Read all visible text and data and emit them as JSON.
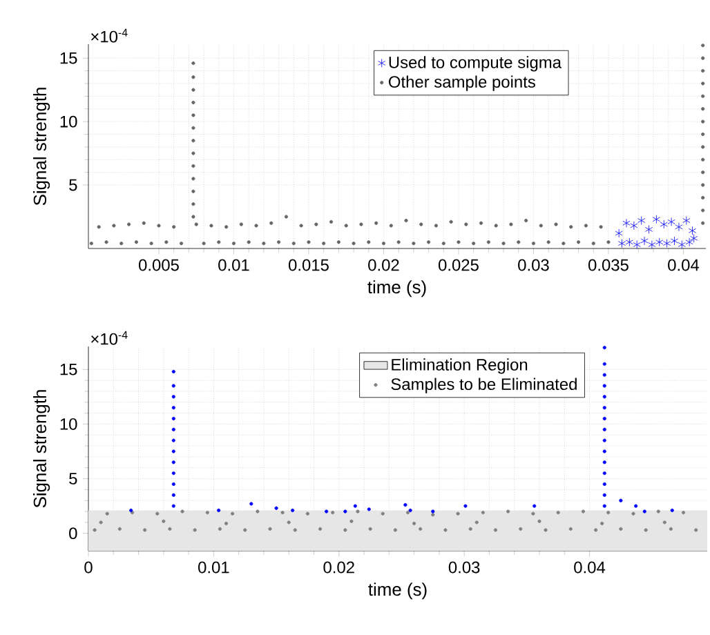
{
  "chart_data": [
    {
      "type": "scatter",
      "xlabel": "time (s)",
      "ylabel": "Signal strength",
      "annotations": [
        "×10$^{-4}$"
      ],
      "xlim": [
        0.0003,
        0.0415
      ],
      "ylim": [
        0,
        16.1
      ],
      "xticks": [
        0.005,
        0.01,
        0.015,
        0.02,
        0.025,
        0.03,
        0.035,
        0.04
      ],
      "yticks": [
        5,
        10,
        15
      ],
      "grid": true,
      "legend": "top",
      "series": [
        {
          "name": "Used to compute sigma",
          "color": "#0000ff",
          "marker": "cross",
          "x": [
            0.0357,
            0.0359,
            0.0362,
            0.0364,
            0.0367,
            0.0369,
            0.0372,
            0.0374,
            0.0377,
            0.0379,
            0.0382,
            0.0384,
            0.0387,
            0.0389,
            0.0392,
            0.0394,
            0.0397,
            0.0399,
            0.0402,
            0.0404,
            0.0406,
            0.0407
          ],
          "values": [
            1.2,
            0.4,
            2.0,
            0.5,
            1.8,
            0.3,
            2.2,
            0.6,
            1.5,
            0.3,
            2.3,
            0.5,
            1.9,
            0.4,
            2.1,
            0.6,
            1.7,
            0.3,
            2.2,
            0.5,
            1.4,
            0.8
          ]
        },
        {
          "name": "Other sample points",
          "color": "#666666",
          "marker": "circle",
          "x": [
            0.0005,
            0.001,
            0.0015,
            0.002,
            0.0025,
            0.003,
            0.0035,
            0.004,
            0.0045,
            0.005,
            0.0055,
            0.006,
            0.0065,
            0.0075,
            0.008,
            0.0085,
            0.009,
            0.0095,
            0.01,
            0.0105,
            0.011,
            0.0115,
            0.012,
            0.0125,
            0.013,
            0.0135,
            0.014,
            0.0145,
            0.015,
            0.0155,
            0.016,
            0.0165,
            0.017,
            0.0175,
            0.018,
            0.0185,
            0.019,
            0.0195,
            0.02,
            0.0205,
            0.021,
            0.0215,
            0.022,
            0.0225,
            0.023,
            0.0235,
            0.024,
            0.0245,
            0.025,
            0.0255,
            0.026,
            0.0265,
            0.027,
            0.0275,
            0.028,
            0.0285,
            0.029,
            0.0295,
            0.03,
            0.0305,
            0.031,
            0.0315,
            0.032,
            0.0325,
            0.033,
            0.0335,
            0.034,
            0.0345,
            0.035,
            0.0073,
            0.0073,
            0.0073,
            0.0073,
            0.0073,
            0.0073,
            0.0073,
            0.0073,
            0.0073,
            0.0073,
            0.0073,
            0.0073,
            0.0073,
            0.0413,
            0.0413,
            0.0413,
            0.0413,
            0.0413,
            0.0413,
            0.0413,
            0.0413,
            0.0413,
            0.0413,
            0.0413,
            0.0413,
            0.0413,
            0.0413,
            0.0413
          ],
          "values": [
            0.4,
            1.7,
            0.5,
            1.8,
            0.4,
            1.9,
            0.5,
            2.0,
            0.4,
            1.8,
            0.5,
            1.7,
            0.4,
            1.9,
            0.4,
            1.8,
            0.5,
            1.7,
            0.4,
            1.9,
            0.5,
            1.8,
            0.4,
            2.0,
            0.5,
            2.5,
            0.4,
            1.8,
            0.5,
            1.9,
            0.4,
            2.1,
            0.5,
            1.8,
            0.4,
            1.9,
            0.5,
            2.0,
            0.4,
            1.8,
            0.5,
            2.2,
            0.4,
            1.9,
            0.5,
            1.8,
            0.4,
            2.1,
            0.5,
            1.9,
            0.4,
            2.0,
            0.5,
            1.8,
            0.4,
            1.9,
            0.5,
            2.2,
            0.4,
            1.8,
            0.5,
            1.9,
            0.4,
            1.7,
            0.5,
            1.8,
            0.4,
            1.7,
            0.5,
            2.5,
            3.5,
            4.5,
            5.5,
            6.5,
            7.5,
            8.5,
            9.5,
            10.5,
            11.5,
            12.5,
            13.5,
            14.6,
            2,
            3,
            4,
            5,
            6,
            7,
            8,
            9,
            10,
            11,
            12,
            13,
            14,
            15,
            16
          ]
        }
      ]
    },
    {
      "type": "scatter",
      "xlabel": "time (s)",
      "ylabel": "Signal strength",
      "annotations": [
        "×10$^{-4}$"
      ],
      "xlim": [
        0,
        0.0494
      ],
      "ylim": [
        -1.6,
        17.1
      ],
      "xticks": [
        0,
        0.01,
        0.02,
        0.03,
        0.04
      ],
      "yticks": [
        0,
        5,
        10,
        15
      ],
      "grid": true,
      "legend": "top",
      "bands": [
        {
          "axis": "y",
          "from": -1.6,
          "to": 2.1,
          "label": "Elimination Region",
          "color": "#e6e6e6"
        }
      ],
      "series": [
        {
          "name": "Samples to be Eliminated",
          "color": "#808080",
          "marker": "circle",
          "x": [
            0.0005,
            0.0015,
            0.0025,
            0.0035,
            0.0045,
            0.0055,
            0.0065,
            0.0075,
            0.0085,
            0.0095,
            0.0105,
            0.0115,
            0.0125,
            0.0135,
            0.0145,
            0.0155,
            0.0165,
            0.0175,
            0.0185,
            0.0195,
            0.0205,
            0.0215,
            0.0225,
            0.0235,
            0.0245,
            0.0255,
            0.0265,
            0.0275,
            0.0285,
            0.0295,
            0.0305,
            0.0315,
            0.0325,
            0.0335,
            0.0345,
            0.0355,
            0.0365,
            0.0375,
            0.0385,
            0.0395,
            0.0405,
            0.0415,
            0.0425,
            0.0435,
            0.0445,
            0.0455,
            0.0465,
            0.0475,
            0.0485,
            0.001,
            0.006,
            0.011,
            0.016,
            0.021,
            0.026,
            0.031,
            0.036,
            0.041,
            0.046
          ],
          "values": [
            0.3,
            1.8,
            0.4,
            1.9,
            0.3,
            1.8,
            0.4,
            2.0,
            0.3,
            1.9,
            0.4,
            1.8,
            0.3,
            2.0,
            0.4,
            1.9,
            0.3,
            1.8,
            0.4,
            1.9,
            0.3,
            2.0,
            0.4,
            1.8,
            0.3,
            1.9,
            0.4,
            1.7,
            0.3,
            1.8,
            0.4,
            1.9,
            0.3,
            2.0,
            0.4,
            1.8,
            0.3,
            1.9,
            0.4,
            2.0,
            0.3,
            1.9,
            0.4,
            1.8,
            0.3,
            2.0,
            0.4,
            1.9,
            0.3,
            1.0,
            1.1,
            0.9,
            1.0,
            1.1,
            0.9,
            1.0,
            1.1,
            0.9,
            1.0
          ]
        },
        {
          "color": "#0000ff",
          "marker": "circle",
          "x": [
            0.0034,
            0.0104,
            0.013,
            0.015,
            0.0163,
            0.019,
            0.0205,
            0.0213,
            0.0224,
            0.0253,
            0.0257,
            0.0275,
            0.0301,
            0.0356,
            0.0425,
            0.0437,
            0.0444,
            0.0466,
            0.0068,
            0.0068,
            0.0068,
            0.0068,
            0.0068,
            0.0068,
            0.0068,
            0.0068,
            0.0068,
            0.0068,
            0.0068,
            0.0068,
            0.0068,
            0.0412,
            0.0412,
            0.0412,
            0.0412,
            0.0412,
            0.0412,
            0.0412,
            0.0412,
            0.0412,
            0.0412,
            0.0412,
            0.0412,
            0.0412,
            0.0412,
            0.0412
          ],
          "values": [
            2.1,
            2.1,
            2.7,
            2.3,
            2.1,
            2.0,
            2.0,
            2.5,
            2.2,
            2.6,
            2.1,
            2.0,
            2.5,
            2.5,
            3.0,
            2.5,
            2.0,
            2.1,
            2.5,
            3.5,
            4.5,
            5.5,
            6.5,
            7.5,
            8.5,
            9.5,
            10.5,
            11.5,
            12.5,
            13.5,
            14.8,
            2.5,
            3.5,
            4.5,
            5.5,
            6.5,
            7.5,
            8.5,
            9.5,
            10.5,
            11.5,
            12.5,
            13.5,
            14.5,
            15.5,
            17
          ]
        }
      ]
    }
  ]
}
